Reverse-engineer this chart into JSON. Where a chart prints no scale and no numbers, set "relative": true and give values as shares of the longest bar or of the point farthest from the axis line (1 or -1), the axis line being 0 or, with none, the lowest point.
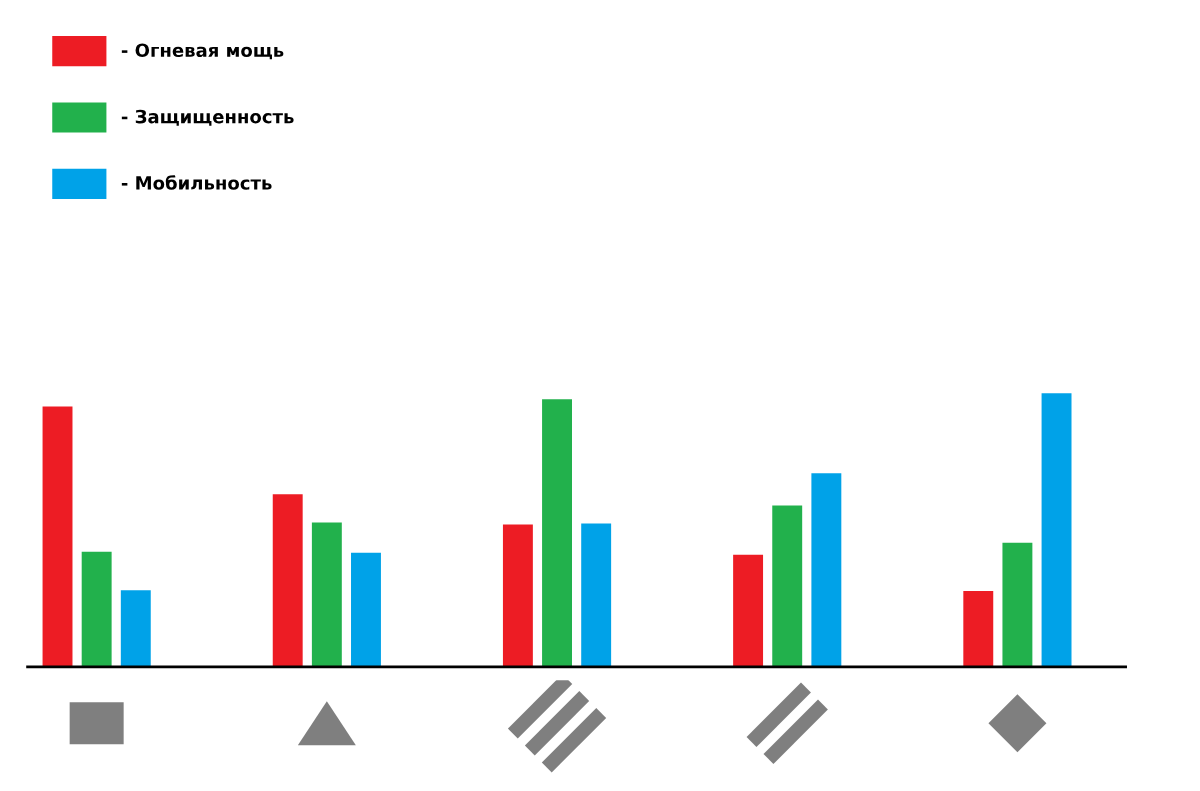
{
  "chart_data": {
    "type": "bar",
    "relative": true,
    "categories": [
      null,
      null,
      null,
      null,
      null
    ],
    "series": [
      {
        "name": "- Огневая мощь",
        "color": "#ed1c24",
        "values": [
          0.952,
          0.631,
          0.52,
          0.41,
          0.277
        ]
      },
      {
        "name": "- Защищенность",
        "color": "#22b14c",
        "values": [
          0.421,
          0.528,
          0.978,
          0.59,
          0.454
        ]
      },
      {
        "name": "- Мобильность",
        "color": "#00a2e8",
        "values": [
          0.28,
          0.417,
          0.524,
          0.708,
          1.0
        ]
      }
    ],
    "legend": "top left",
    "grid": false
  }
}
